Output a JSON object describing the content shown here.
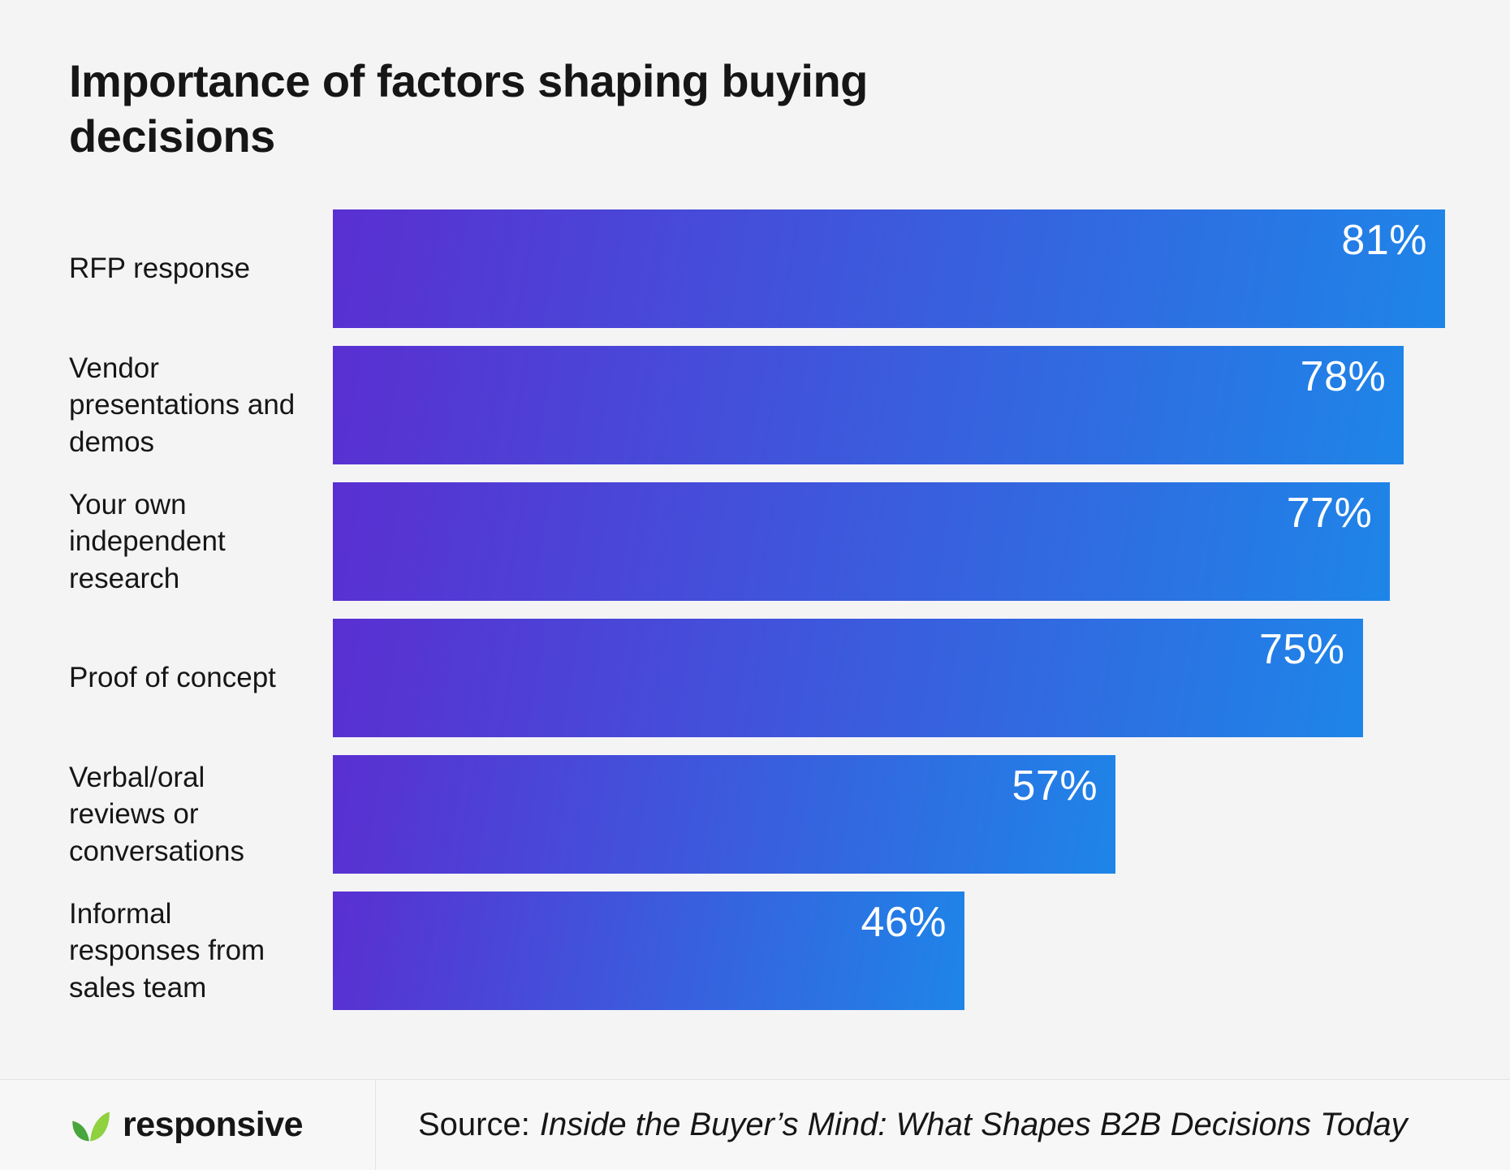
{
  "chart_data": {
    "type": "bar",
    "orientation": "horizontal",
    "title": "Importance of factors shaping buying decisions",
    "categories": [
      "RFP response",
      "Vendor presentations and demos",
      "Your own independent research",
      "Proof of concept",
      "Verbal/oral reviews or conversations",
      "Informal responses from sales team"
    ],
    "values": [
      81,
      78,
      77,
      75,
      57,
      46
    ],
    "value_suffix": "%",
    "xlim": [
      0,
      81
    ],
    "grid": false,
    "legend": false,
    "axis_visible": false,
    "bar_gradient_start": "#5a2fd1",
    "bar_gradient_end": "#1e85e8",
    "value_label_color": "#ffffff",
    "value_label_position": "inside-top-right"
  },
  "footer": {
    "brand": "responsive",
    "source_prefix": "Source:",
    "source_work": "Inside the Buyer’s Mind: What Shapes B2B Decisions Today"
  },
  "theme": {
    "background": "#f4f4f5",
    "footer_background": "#f7f7f8",
    "text_color": "#161616",
    "divider_color": "#e3e3e6",
    "logo_green_light": "#8fd13f",
    "logo_green_dark": "#47a63c"
  }
}
